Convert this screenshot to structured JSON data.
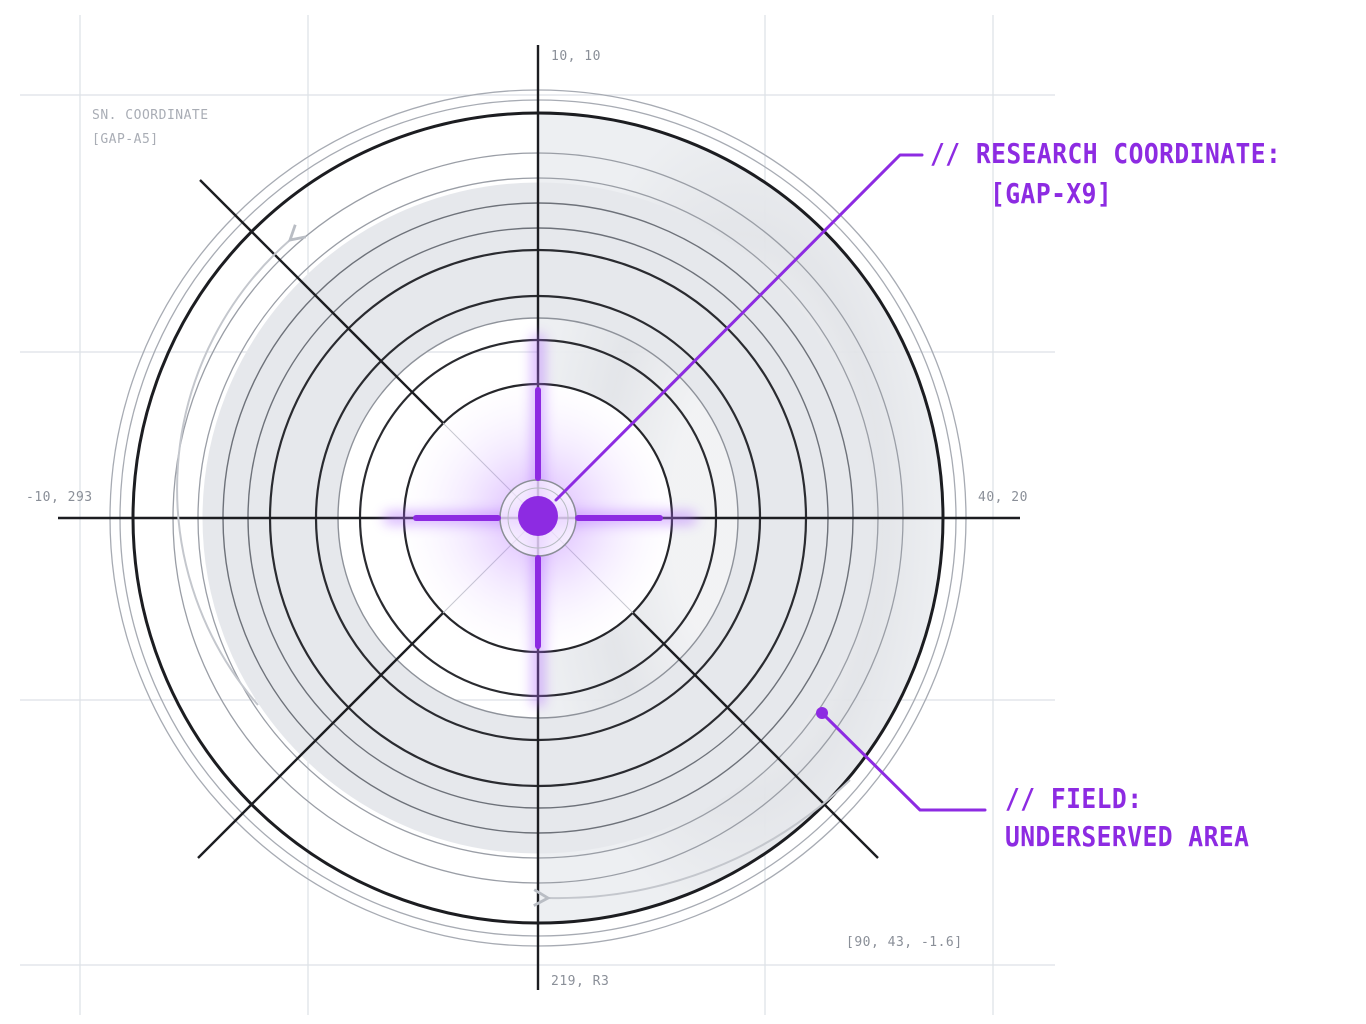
{
  "colors": {
    "accent": "#8d2be2",
    "ink": "#1c1d21",
    "grid": "#d9dde4",
    "ring_light": "#a7abb3",
    "shade": "#e4e6ea"
  },
  "labels": {
    "top_axis": "10, 10",
    "bottom_axis": "219, R3",
    "left_axis": "-10, 293",
    "right_axis": "40, 20",
    "secondary_coordinate": "SN. COORDINATE",
    "secondary_code": "[GAP-A5]",
    "corner_readout": "[90, 43, -1.6]"
  },
  "callouts": {
    "research": {
      "line1": "// RESEARCH COORDINATE:",
      "line2": "[GAP-X9]"
    },
    "field": {
      "line1": "// FIELD:",
      "line2": "UNDERSERVED AREA"
    }
  }
}
